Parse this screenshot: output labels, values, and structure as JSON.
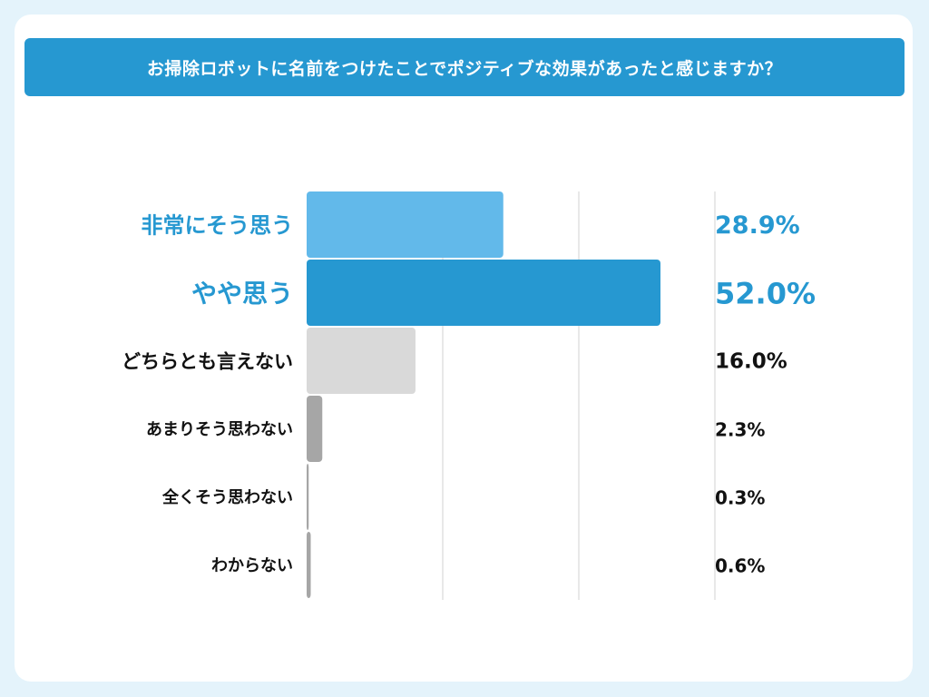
{
  "title": "お掃除ロボットに名前をつけたことでポジティブな効果があったと感じますか？",
  "chart_data": {
    "type": "bar",
    "orientation": "horizontal",
    "xlim": [
      0,
      75
    ],
    "grid": true,
    "categories": [
      "非常にそう思う",
      "やや思う",
      "どちらとも言えない",
      "あまりそう思わない",
      "全くそう思わない",
      "わからない"
    ],
    "values": [
      28.9,
      52.0,
      16.0,
      2.3,
      0.3,
      0.6
    ],
    "value_labels": [
      "28.9%",
      "52.0%",
      "16.0%",
      "2.3%",
      "0.3%",
      "0.6%"
    ],
    "bar_colors": [
      "#62b9ea",
      "#2698d1",
      "#d9d9d9",
      "#a6a6a6",
      "#a6a6a6",
      "#a6a6a6"
    ],
    "label_colors": [
      "#2698d1",
      "#2698d1",
      "#111111",
      "#111111",
      "#111111",
      "#111111"
    ]
  }
}
